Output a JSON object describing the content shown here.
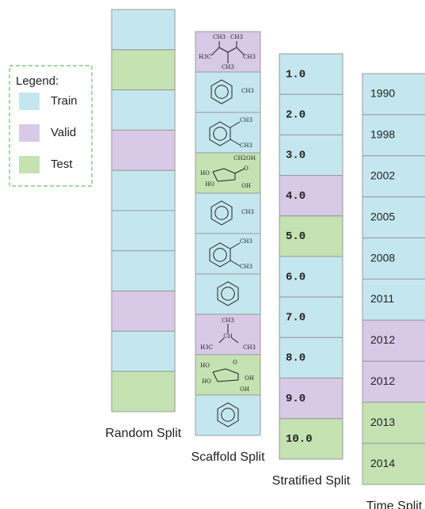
{
  "legend": {
    "title": "Legend:",
    "items": [
      {
        "label": "Train",
        "color": "#c4e7ef"
      },
      {
        "label": "Valid",
        "color": "#d8c9e7"
      },
      {
        "label": "Test",
        "color": "#c4e2b2"
      }
    ]
  },
  "columns": [
    {
      "label": "Random Split",
      "cells": [
        {
          "color": "#c4e7ef"
        },
        {
          "color": "#c4e2b2"
        },
        {
          "color": "#c4e7ef"
        },
        {
          "color": "#d8c9e7"
        },
        {
          "color": "#c4e7ef"
        },
        {
          "color": "#c4e7ef"
        },
        {
          "color": "#c4e7ef"
        },
        {
          "color": "#d8c9e7"
        },
        {
          "color": "#c4e7ef"
        },
        {
          "color": "#c4e2b2"
        }
      ]
    },
    {
      "label": "Scaffold Split",
      "cells": [
        {
          "color": "#d8c9e7",
          "texts": [
            "CH3",
            "CH3",
            "H3C",
            "CH3",
            "CH3"
          ]
        },
        {
          "color": "#c4e7ef",
          "texts": [
            "CH3"
          ]
        },
        {
          "color": "#c4e7ef",
          "texts": [
            "CH3",
            "CH3"
          ]
        },
        {
          "color": "#c4e2b2",
          "texts": [
            "CH2OH",
            "O",
            "HO",
            "HO",
            "OH"
          ]
        },
        {
          "color": "#c4e7ef",
          "texts": [
            "CH3"
          ]
        },
        {
          "color": "#c4e7ef",
          "texts": [
            "CH3",
            "CH3"
          ]
        },
        {
          "color": "#c4e7ef",
          "texts": []
        },
        {
          "color": "#d8c9e7",
          "texts": [
            "CH3",
            "CH",
            "H3C",
            "CH3"
          ]
        },
        {
          "color": "#c4e2b2",
          "texts": [
            "HO",
            "O",
            "HO",
            "OH",
            "OH"
          ]
        },
        {
          "color": "#c4e7ef",
          "texts": []
        }
      ]
    },
    {
      "label": "Stratified Split",
      "cells": [
        {
          "color": "#c4e7ef",
          "text": "1.0"
        },
        {
          "color": "#c4e7ef",
          "text": "2.0"
        },
        {
          "color": "#c4e7ef",
          "text": "3.0"
        },
        {
          "color": "#d8c9e7",
          "text": "4.0"
        },
        {
          "color": "#c4e2b2",
          "text": "5.0"
        },
        {
          "color": "#c4e7ef",
          "text": "6.0"
        },
        {
          "color": "#c4e7ef",
          "text": "7.0"
        },
        {
          "color": "#c4e7ef",
          "text": "8.0"
        },
        {
          "color": "#d8c9e7",
          "text": "9.0"
        },
        {
          "color": "#c4e2b2",
          "text": "10.0"
        }
      ]
    },
    {
      "label": "Time Split",
      "cells": [
        {
          "color": "#c4e7ef",
          "text": "1990"
        },
        {
          "color": "#c4e7ef",
          "text": "1998"
        },
        {
          "color": "#c4e7ef",
          "text": "2002"
        },
        {
          "color": "#c4e7ef",
          "text": "2005"
        },
        {
          "color": "#c4e7ef",
          "text": "2008"
        },
        {
          "color": "#c4e7ef",
          "text": "2011"
        },
        {
          "color": "#d8c9e7",
          "text": "2012"
        },
        {
          "color": "#d8c9e7",
          "text": "2012"
        },
        {
          "color": "#c4e2b2",
          "text": "2013"
        },
        {
          "color": "#c4e2b2",
          "text": "2014"
        }
      ]
    }
  ]
}
